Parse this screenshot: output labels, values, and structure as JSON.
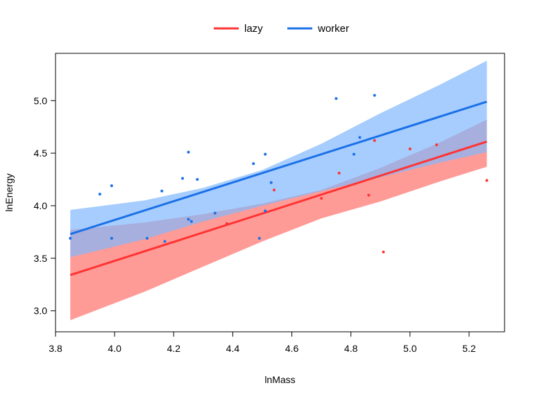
{
  "chart_data": {
    "type": "line",
    "title": "",
    "xlabel": "lnMass",
    "ylabel": "lnEnergy",
    "xlim": [
      3.8,
      5.32
    ],
    "ylim": [
      2.8,
      5.45
    ],
    "xticks": [
      3.8,
      4.0,
      4.2,
      4.4,
      4.6,
      4.8,
      5.0,
      5.2
    ],
    "xtick_labels": [
      "3.8",
      "4.0",
      "4.2",
      "4.4",
      "4.6",
      "4.8",
      "5.0",
      "5.2"
    ],
    "yticks": [
      3.0,
      3.5,
      4.0,
      4.5,
      5.0
    ],
    "ytick_labels": [
      "3.0",
      "3.5",
      "4.0",
      "4.5",
      "5.0"
    ],
    "grid": false,
    "legend_position": "top-center",
    "series": [
      {
        "name": "lazy",
        "color": "#ff3333",
        "band_color": "#ff8a85",
        "fit_x": [
          3.85,
          5.26
        ],
        "fit_y": [
          3.34,
          4.61
        ],
        "band_x": [
          3.85,
          4.1,
          4.3,
          4.5,
          4.7,
          4.9,
          5.1,
          5.26
        ],
        "band_lower": [
          2.91,
          3.18,
          3.42,
          3.66,
          3.88,
          4.04,
          4.23,
          4.37
        ],
        "band_upper": [
          3.77,
          3.84,
          3.92,
          4.02,
          4.15,
          4.36,
          4.6,
          4.82
        ],
        "points": [
          [
            4.38,
            3.83
          ],
          [
            4.54,
            4.15
          ],
          [
            4.7,
            4.07
          ],
          [
            4.76,
            4.31
          ],
          [
            4.86,
            4.1
          ],
          [
            4.91,
            3.56
          ],
          [
            4.88,
            4.62
          ],
          [
            5.26,
            4.24
          ],
          [
            5.0,
            4.54
          ],
          [
            5.09,
            4.58
          ]
        ]
      },
      {
        "name": "worker",
        "color": "#1a70e8",
        "band_color": "#80b8fc",
        "fit_x": [
          3.85,
          5.26
        ],
        "fit_y": [
          3.73,
          4.99
        ],
        "band_x": [
          3.85,
          4.1,
          4.3,
          4.5,
          4.7,
          4.9,
          5.1,
          5.26
        ],
        "band_lower": [
          3.51,
          3.68,
          3.85,
          4.0,
          4.14,
          4.27,
          4.41,
          4.51
        ],
        "band_upper": [
          3.96,
          4.05,
          4.17,
          4.34,
          4.59,
          4.88,
          5.15,
          5.38
        ],
        "points": [
          [
            3.85,
            3.69
          ],
          [
            3.95,
            4.11
          ],
          [
            3.99,
            4.19
          ],
          [
            3.99,
            3.69
          ],
          [
            4.11,
            3.69
          ],
          [
            4.16,
            4.14
          ],
          [
            4.17,
            3.66
          ],
          [
            4.23,
            4.26
          ],
          [
            4.25,
            4.51
          ],
          [
            4.25,
            3.87
          ],
          [
            4.26,
            3.85
          ],
          [
            4.28,
            4.25
          ],
          [
            4.34,
            3.93
          ],
          [
            4.47,
            4.4
          ],
          [
            4.49,
            3.69
          ],
          [
            4.51,
            4.49
          ],
          [
            4.51,
            3.95
          ],
          [
            4.53,
            4.22
          ],
          [
            4.75,
            5.02
          ],
          [
            4.83,
            4.65
          ],
          [
            4.81,
            4.49
          ],
          [
            4.88,
            5.05
          ]
        ]
      }
    ]
  }
}
